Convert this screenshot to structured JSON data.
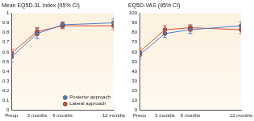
{
  "chart_data": [
    {
      "type": "line",
      "title": "Mean EQ5D-3L index (95% CI)",
      "xlim": [
        0,
        12
      ],
      "xticks": [
        {
          "value": 0,
          "label": "Preop"
        },
        {
          "value": 3,
          "label": "3 months"
        },
        {
          "value": 6,
          "label": "6 months"
        },
        {
          "value": 12,
          "label": "12 months"
        }
      ],
      "ylim": [
        0,
        1
      ],
      "yticks": [
        0,
        0.1,
        0.2,
        0.3,
        0.4,
        0.5,
        0.6,
        0.7,
        0.8,
        0.9,
        1
      ],
      "grid": false,
      "legend": "lower right",
      "x": [
        0,
        3,
        6,
        12
      ],
      "series": [
        {
          "name": "Posterior approach",
          "color": "#4a7fc8",
          "marker": "circle",
          "values": [
            0.55,
            0.79,
            0.88,
            0.9
          ],
          "lower": [
            0.5,
            0.74,
            0.85,
            0.86
          ],
          "upper": [
            0.6,
            0.84,
            0.91,
            0.94
          ]
        },
        {
          "name": "Lateral approach",
          "color": "#d9482b",
          "marker": "circle",
          "values": [
            0.59,
            0.81,
            0.87,
            0.87
          ],
          "lower": [
            0.55,
            0.77,
            0.84,
            0.83
          ],
          "upper": [
            0.63,
            0.85,
            0.9,
            0.91
          ]
        }
      ]
    },
    {
      "type": "line",
      "title": "EQ5D-VAS (95% CI)",
      "xlim": [
        0,
        12
      ],
      "xticks": [
        {
          "value": 0,
          "label": "Preop"
        },
        {
          "value": 3,
          "label": "3 months"
        },
        {
          "value": 6,
          "label": "6 months"
        },
        {
          "value": 12,
          "label": "12 months"
        }
      ],
      "ylim": [
        0,
        100
      ],
      "yticks": [
        0,
        10,
        20,
        30,
        40,
        50,
        60,
        70,
        80,
        90,
        100
      ],
      "grid": false,
      "x": [
        0,
        3,
        6,
        12
      ],
      "series": [
        {
          "name": "Posterior approach",
          "color": "#4a7fc8",
          "marker": "circle",
          "values": [
            57,
            79,
            83,
            87
          ],
          "lower": [
            53,
            75,
            79,
            83
          ],
          "upper": [
            61,
            83,
            87,
            91
          ]
        },
        {
          "name": "Lateral approach",
          "color": "#d9482b",
          "marker": "circle",
          "values": [
            60,
            83,
            85,
            83
          ],
          "lower": [
            56,
            79,
            82,
            79
          ],
          "upper": [
            64,
            87,
            88,
            87
          ]
        }
      ]
    }
  ]
}
